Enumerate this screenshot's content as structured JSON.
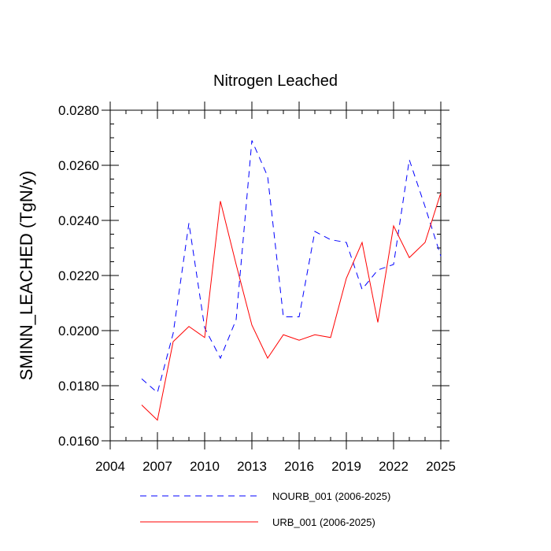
{
  "chart_data": {
    "type": "line",
    "title": "Nitrogen Leached",
    "xlabel": "",
    "ylabel": "SMINN_LEACHED  (TgN/y)",
    "xlim": [
      2004,
      2025
    ],
    "ylim": [
      0.016,
      0.028
    ],
    "x_ticks": [
      2004,
      2007,
      2010,
      2013,
      2016,
      2019,
      2022,
      2025
    ],
    "x_tick_labels": [
      "2004",
      "2007",
      "2010",
      "2013",
      "2016",
      "2019",
      "2022",
      "2025"
    ],
    "y_ticks": [
      0.016,
      0.018,
      0.02,
      0.022,
      0.024,
      0.026,
      0.028
    ],
    "y_tick_labels": [
      "0.0160",
      "0.0180",
      "0.0200",
      "0.0220",
      "0.0240",
      "0.0260",
      "0.0280"
    ],
    "x": [
      2006,
      2007,
      2008,
      2009,
      2010,
      2011,
      2012,
      2013,
      2014,
      2015,
      2016,
      2017,
      2018,
      2019,
      2020,
      2021,
      2022,
      2023,
      2024,
      2025
    ],
    "series": [
      {
        "name": "NOURB_001 (2006-2025)",
        "color": "#0000ff",
        "dash": "dashed",
        "values": [
          0.01825,
          0.01775,
          0.0199,
          0.0239,
          0.0201,
          0.019,
          0.0204,
          0.0269,
          0.0256,
          0.0205,
          0.0205,
          0.0236,
          0.0233,
          0.0232,
          0.0215,
          0.0222,
          0.0224,
          0.0262,
          0.0245,
          0.0227
        ]
      },
      {
        "name": "URB_001 (2006-2025)",
        "color": "#ff0000",
        "dash": "solid",
        "values": [
          0.0173,
          0.01675,
          0.0196,
          0.02015,
          0.01975,
          0.0247,
          0.0224,
          0.0202,
          0.019,
          0.01985,
          0.01965,
          0.01985,
          0.01975,
          0.0219,
          0.0232,
          0.0203,
          0.0238,
          0.02265,
          0.0232,
          0.025
        ]
      }
    ],
    "legend": "bottom"
  }
}
